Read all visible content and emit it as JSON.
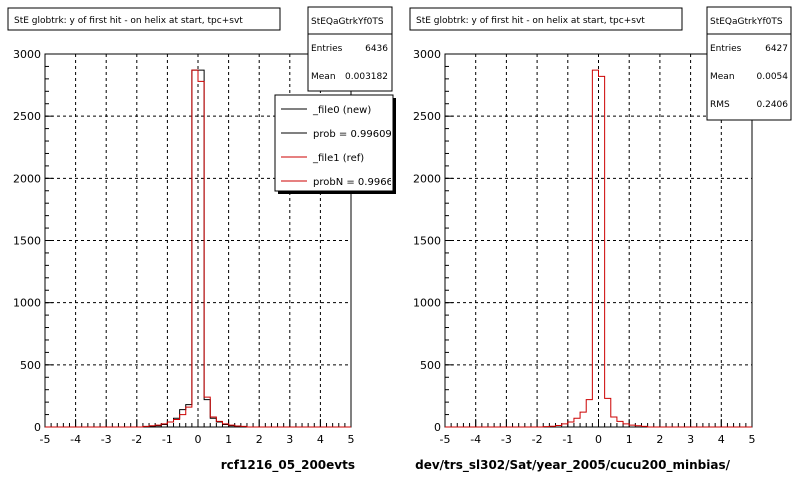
{
  "colors": {
    "new": "#000000",
    "ref": "#cc0000",
    "background": "#ffffff",
    "grid": "#000000"
  },
  "chart_data": [
    {
      "type": "histogram",
      "title": "StE globtrk: y of first hit - on helix at start, tpc+svt",
      "xlabel": "rcf1216_05_200evts",
      "ylabel": "",
      "xlim": [
        -5,
        5
      ],
      "ylim": [
        0,
        3000
      ],
      "xticks": [
        -5,
        -4,
        -3,
        -2,
        -1,
        0,
        1,
        2,
        3,
        4,
        5
      ],
      "yticks": [
        0,
        500,
        1000,
        1500,
        2000,
        2500,
        3000
      ],
      "grid": true,
      "stats": {
        "name": "StEQaGtrkYf0TS",
        "entries_label": "Entries",
        "entries": "6436",
        "mean_label": "Mean",
        "mean": "0.003182"
      },
      "legend": {
        "position": "top-right",
        "entries": [
          {
            "label": "_file0 (new)",
            "color": "#000000"
          },
          {
            "label": "prob = 0.996098",
            "color": "#000000"
          },
          {
            "label": "_file1 (ref)",
            "color": "#cc0000"
          },
          {
            "label": "probN = 0.996637",
            "color": "#cc0000"
          }
        ]
      },
      "bin_edges": [
        -5.0,
        -4.8,
        -4.6,
        -4.4,
        -4.2,
        -4.0,
        -3.8,
        -3.6,
        -3.4,
        -3.2,
        -3.0,
        -2.8,
        -2.6,
        -2.4,
        -2.2,
        -2.0,
        -1.8,
        -1.6,
        -1.4,
        -1.2,
        -1.0,
        -0.8,
        -0.6,
        -0.4,
        -0.2,
        0.0,
        0.2,
        0.4,
        0.6,
        0.8,
        1.0,
        1.2,
        1.4,
        1.6,
        1.8,
        2.0,
        2.2,
        2.4,
        2.6,
        2.8,
        3.0,
        3.2,
        3.4,
        3.6,
        3.8,
        4.0,
        4.2,
        4.4,
        4.6,
        4.8,
        5.0
      ],
      "series": [
        {
          "name": "_file0 (new)",
          "color": "#000000",
          "values": [
            0,
            0,
            0,
            0,
            0,
            0,
            0,
            0,
            0,
            0,
            0,
            0,
            0,
            0,
            0,
            0,
            0,
            5,
            10,
            20,
            40,
            70,
            140,
            180,
            2870,
            2870,
            220,
            70,
            40,
            20,
            10,
            5,
            0,
            0,
            0,
            0,
            0,
            0,
            0,
            0,
            0,
            0,
            0,
            0,
            0,
            0,
            0,
            0,
            0,
            0
          ]
        },
        {
          "name": "_file1 (ref)",
          "color": "#cc0000",
          "values": [
            0,
            0,
            0,
            0,
            0,
            0,
            0,
            0,
            0,
            0,
            0,
            0,
            0,
            0,
            0,
            0,
            5,
            10,
            15,
            25,
            40,
            60,
            100,
            160,
            2870,
            2780,
            240,
            80,
            45,
            25,
            15,
            8,
            5,
            0,
            0,
            0,
            0,
            0,
            0,
            0,
            0,
            0,
            0,
            0,
            0,
            0,
            0,
            0,
            0,
            0
          ]
        }
      ]
    },
    {
      "type": "histogram",
      "title": "StE globtrk: y of first hit - on helix at start, tpc+svt",
      "xlabel": "dev/trs_sl302/Sat/year_2005/cucu200_minbias/",
      "ylabel": "",
      "xlim": [
        -5,
        5
      ],
      "ylim": [
        0,
        3000
      ],
      "xticks": [
        -5,
        -4,
        -3,
        -2,
        -1,
        0,
        1,
        2,
        3,
        4,
        5
      ],
      "yticks": [
        0,
        500,
        1000,
        1500,
        2000,
        2500,
        3000
      ],
      "grid": true,
      "stats": {
        "name": "StEQaGtrkYf0TS",
        "entries_label": "Entries",
        "entries": "6427",
        "mean_label": "Mean",
        "mean": "0.0054",
        "rms_label": "RMS",
        "rms": "0.2406"
      },
      "bin_edges": [
        -5.0,
        -4.8,
        -4.6,
        -4.4,
        -4.2,
        -4.0,
        -3.8,
        -3.6,
        -3.4,
        -3.2,
        -3.0,
        -2.8,
        -2.6,
        -2.4,
        -2.2,
        -2.0,
        -1.8,
        -1.6,
        -1.4,
        -1.2,
        -1.0,
        -0.8,
        -0.6,
        -0.4,
        -0.2,
        0.0,
        0.2,
        0.4,
        0.6,
        0.8,
        1.0,
        1.2,
        1.4,
        1.6,
        1.8,
        2.0,
        2.2,
        2.4,
        2.6,
        2.8,
        3.0,
        3.2,
        3.4,
        3.6,
        3.8,
        4.0,
        4.2,
        4.4,
        4.6,
        4.8,
        5.0
      ],
      "series": [
        {
          "name": "",
          "color": "#cc0000",
          "values": [
            0,
            0,
            0,
            0,
            0,
            0,
            0,
            0,
            0,
            0,
            0,
            0,
            0,
            0,
            0,
            0,
            3,
            6,
            12,
            25,
            40,
            70,
            120,
            220,
            2870,
            2820,
            230,
            80,
            45,
            25,
            15,
            10,
            5,
            0,
            0,
            0,
            0,
            0,
            0,
            0,
            0,
            0,
            0,
            0,
            0,
            0,
            0,
            0,
            0,
            0
          ]
        }
      ]
    }
  ]
}
